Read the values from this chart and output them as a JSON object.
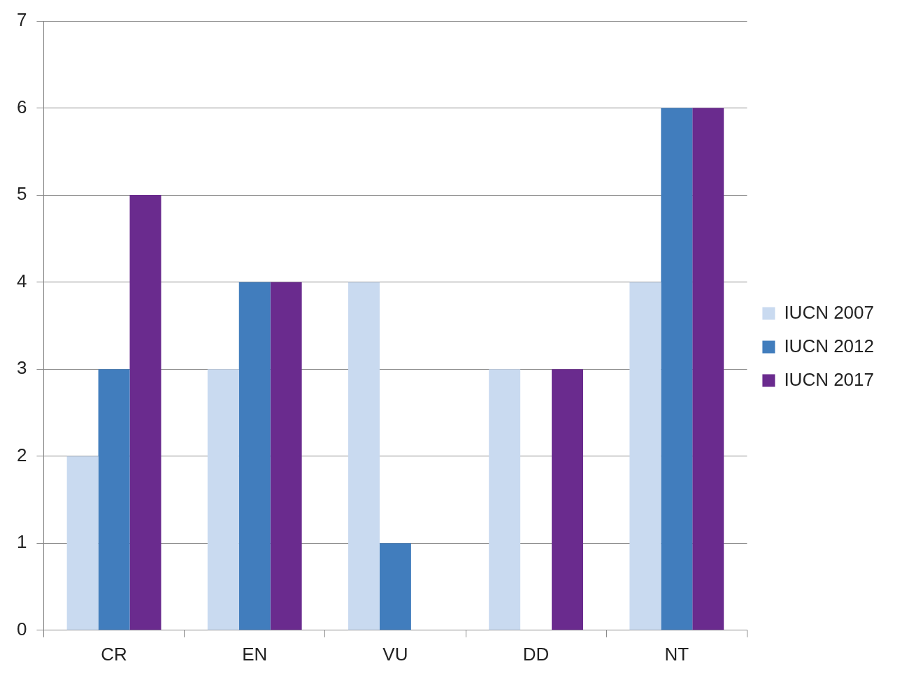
{
  "chart_data": {
    "type": "bar",
    "categories": [
      "CR",
      "EN",
      "VU",
      "DD",
      "NT"
    ],
    "series": [
      {
        "name": "IUCN 2007",
        "color": "#c9daf0",
        "values": [
          2,
          3,
          4,
          3,
          4
        ]
      },
      {
        "name": "IUCN 2012",
        "color": "#417dbd",
        "values": [
          3,
          4,
          1,
          0,
          6
        ]
      },
      {
        "name": "IUCN 2017",
        "color": "#6a2b8e",
        "values": [
          5,
          4,
          0,
          3,
          6
        ]
      }
    ],
    "ylim": [
      0,
      7
    ],
    "yticks": [
      0,
      1,
      2,
      3,
      4,
      5,
      6,
      7
    ],
    "grid": "y",
    "legend": "right"
  }
}
